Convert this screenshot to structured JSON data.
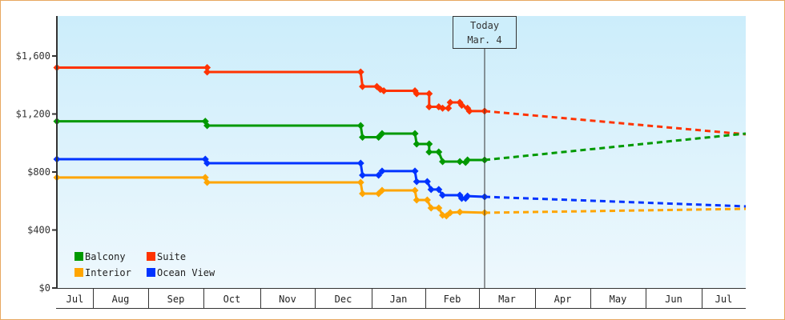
{
  "chart_data": {
    "type": "line",
    "title": "",
    "xlabel": "",
    "ylabel": "",
    "ylim": [
      0,
      1850
    ],
    "y_ticks": [
      "$0",
      "$400",
      "$800",
      "$1,200",
      "$1,600"
    ],
    "y_tick_values": [
      0,
      400,
      800,
      1200,
      1600
    ],
    "x_categories": [
      "Jul",
      "Aug",
      "Sep",
      "Oct",
      "Nov",
      "Dec",
      "Jan",
      "Feb",
      "Mar",
      "Apr",
      "May",
      "Jun",
      "Jul"
    ],
    "today_marker": {
      "line1": "Today",
      "line2": "Mar. 4"
    },
    "legend": [
      {
        "name": "Balcony",
        "color": "#009900"
      },
      {
        "name": "Suite",
        "color": "#ff3300"
      },
      {
        "name": "Interior",
        "color": "#ffa500"
      },
      {
        "name": "Ocean View",
        "color": "#0033ff"
      }
    ],
    "series": [
      {
        "name": "Suite",
        "color": "#ff3300",
        "historical": [
          {
            "date": "Jul 1",
            "value": 1520
          },
          {
            "date": "Oct 3",
            "value": 1520
          },
          {
            "date": "Oct 3",
            "value": 1490
          },
          {
            "date": "Dec 26",
            "value": 1490
          },
          {
            "date": "Dec 27",
            "value": 1390
          },
          {
            "date": "Jan 4",
            "value": 1390
          },
          {
            "date": "Jan 6",
            "value": 1370
          },
          {
            "date": "Jan 8",
            "value": 1360
          },
          {
            "date": "Jan 26",
            "value": 1360
          },
          {
            "date": "Jan 27",
            "value": 1340
          },
          {
            "date": "Feb 3",
            "value": 1340
          },
          {
            "date": "Feb 3",
            "value": 1250
          },
          {
            "date": "Feb 8",
            "value": 1250
          },
          {
            "date": "Feb 10",
            "value": 1240
          },
          {
            "date": "Feb 13",
            "value": 1240
          },
          {
            "date": "Feb 14",
            "value": 1280
          },
          {
            "date": "Feb 19",
            "value": 1280
          },
          {
            "date": "Feb 20",
            "value": 1260
          },
          {
            "date": "Feb 23",
            "value": 1240
          },
          {
            "date": "Feb 24",
            "value": 1220
          },
          {
            "date": "Mar 4",
            "value": 1220
          }
        ],
        "forecast": [
          {
            "date": "Mar 4",
            "value": 1220
          },
          {
            "date": "Jul 31",
            "value": 1060
          }
        ]
      },
      {
        "name": "Balcony",
        "color": "#009900",
        "historical": [
          {
            "date": "Jul 1",
            "value": 1150
          },
          {
            "date": "Oct 2",
            "value": 1150
          },
          {
            "date": "Oct 3",
            "value": 1120
          },
          {
            "date": "Dec 26",
            "value": 1120
          },
          {
            "date": "Dec 27",
            "value": 1040
          },
          {
            "date": "Jan 5",
            "value": 1040
          },
          {
            "date": "Jan 7",
            "value": 1065
          },
          {
            "date": "Jan 26",
            "value": 1065
          },
          {
            "date": "Jan 27",
            "value": 993
          },
          {
            "date": "Feb 3",
            "value": 993
          },
          {
            "date": "Feb 3",
            "value": 938
          },
          {
            "date": "Feb 8",
            "value": 938
          },
          {
            "date": "Feb 10",
            "value": 872
          },
          {
            "date": "Feb 19",
            "value": 872
          },
          {
            "date": "Feb 22",
            "value": 866
          },
          {
            "date": "Feb 23",
            "value": 883
          },
          {
            "date": "Mar 4",
            "value": 883
          }
        ],
        "forecast": [
          {
            "date": "Mar 4",
            "value": 883
          },
          {
            "date": "Jul 31",
            "value": 1065
          }
        ]
      },
      {
        "name": "Ocean View",
        "color": "#0033ff",
        "historical": [
          {
            "date": "Jul 1",
            "value": 888
          },
          {
            "date": "Oct 2",
            "value": 888
          },
          {
            "date": "Oct 3",
            "value": 861
          },
          {
            "date": "Dec 26",
            "value": 861
          },
          {
            "date": "Dec 27",
            "value": 778
          },
          {
            "date": "Jan 5",
            "value": 778
          },
          {
            "date": "Jan 7",
            "value": 806
          },
          {
            "date": "Jan 26",
            "value": 806
          },
          {
            "date": "Jan 27",
            "value": 734
          },
          {
            "date": "Feb 2",
            "value": 734
          },
          {
            "date": "Feb 4",
            "value": 679
          },
          {
            "date": "Feb 8",
            "value": 679
          },
          {
            "date": "Feb 10",
            "value": 640
          },
          {
            "date": "Feb 19",
            "value": 640
          },
          {
            "date": "Feb 20",
            "value": 618
          },
          {
            "date": "Feb 22",
            "value": 618
          },
          {
            "date": "Feb 23",
            "value": 634
          },
          {
            "date": "Mar 4",
            "value": 629
          }
        ],
        "forecast": [
          {
            "date": "Mar 4",
            "value": 629
          },
          {
            "date": "Jul 31",
            "value": 563
          }
        ]
      },
      {
        "name": "Interior",
        "color": "#ffa500",
        "historical": [
          {
            "date": "Jul 1",
            "value": 762
          },
          {
            "date": "Oct 2",
            "value": 762
          },
          {
            "date": "Oct 3",
            "value": 728
          },
          {
            "date": "Dec 26",
            "value": 728
          },
          {
            "date": "Dec 27",
            "value": 651
          },
          {
            "date": "Jan 5",
            "value": 651
          },
          {
            "date": "Jan 7",
            "value": 673
          },
          {
            "date": "Jan 26",
            "value": 673
          },
          {
            "date": "Jan 27",
            "value": 607
          },
          {
            "date": "Feb 2",
            "value": 607
          },
          {
            "date": "Feb 4",
            "value": 552
          },
          {
            "date": "Feb 8",
            "value": 552
          },
          {
            "date": "Feb 10",
            "value": 502
          },
          {
            "date": "Feb 12",
            "value": 497
          },
          {
            "date": "Feb 14",
            "value": 519
          },
          {
            "date": "Feb 19",
            "value": 524
          },
          {
            "date": "Mar 4",
            "value": 519
          }
        ],
        "forecast": [
          {
            "date": "Mar 4",
            "value": 519
          },
          {
            "date": "Jul 31",
            "value": 546
          }
        ]
      }
    ]
  }
}
